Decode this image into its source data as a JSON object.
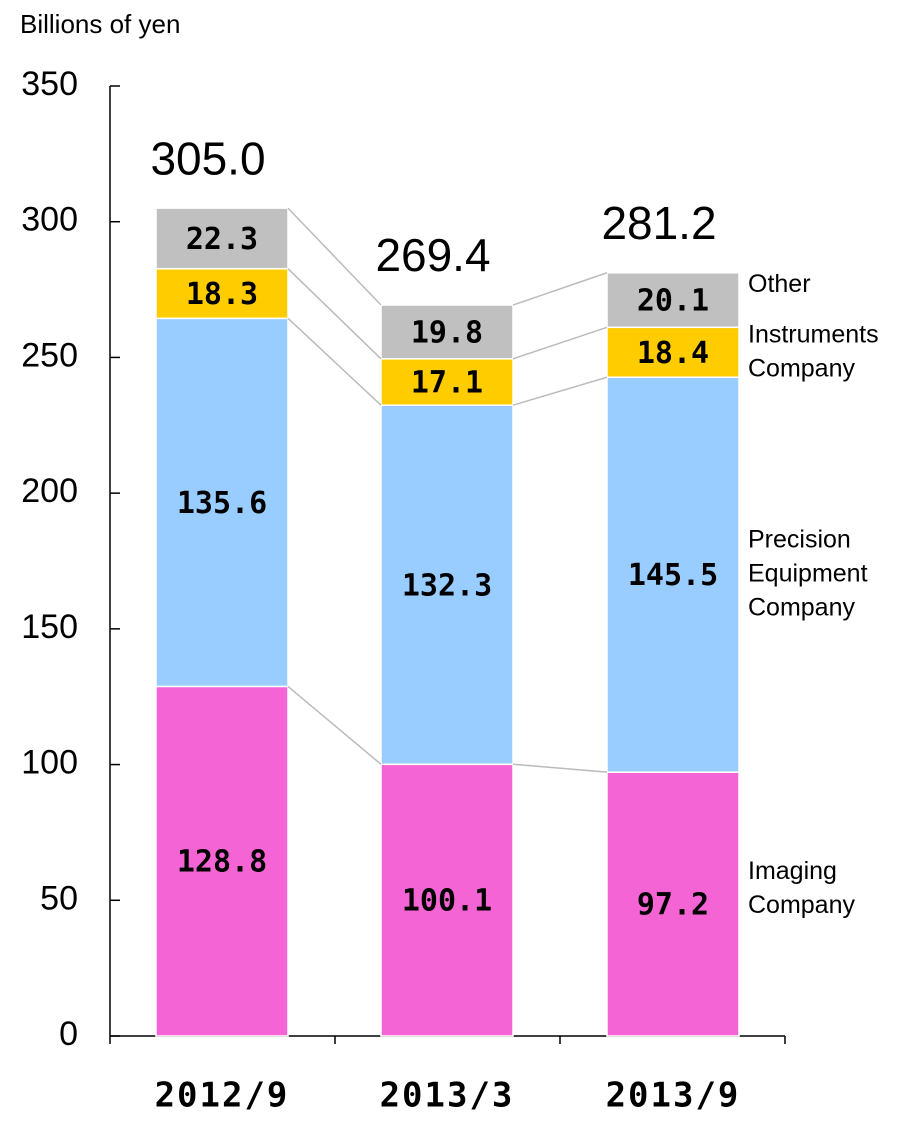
{
  "chart_data": {
    "type": "stacked_bar",
    "y_axis_label": "Billions of yen",
    "categories": [
      "2012/9",
      "2013/3",
      "2013/9"
    ],
    "series": [
      {
        "name": "Imaging Company",
        "color": "#f464d4",
        "values": [
          128.8,
          100.1,
          97.2
        ]
      },
      {
        "name": "Precision Equipment Company",
        "color": "#99ccff",
        "values": [
          135.6,
          132.3,
          145.5
        ]
      },
      {
        "name": "Instruments Company",
        "color": "#ffcc00",
        "values": [
          18.3,
          17.1,
          18.4
        ]
      },
      {
        "name": "Other",
        "color": "#c0c0c0",
        "values": [
          22.3,
          19.8,
          20.1
        ]
      }
    ],
    "totals": {
      "values": [
        305,
        269.4,
        281.2
      ],
      "value_labels": [
        "305.0",
        "269.4",
        "281.2"
      ]
    },
    "ylim": [
      0,
      350
    ],
    "yticks": [
      0,
      50,
      100,
      150,
      200,
      250,
      300,
      350
    ],
    "grid": false,
    "legend": "right"
  }
}
